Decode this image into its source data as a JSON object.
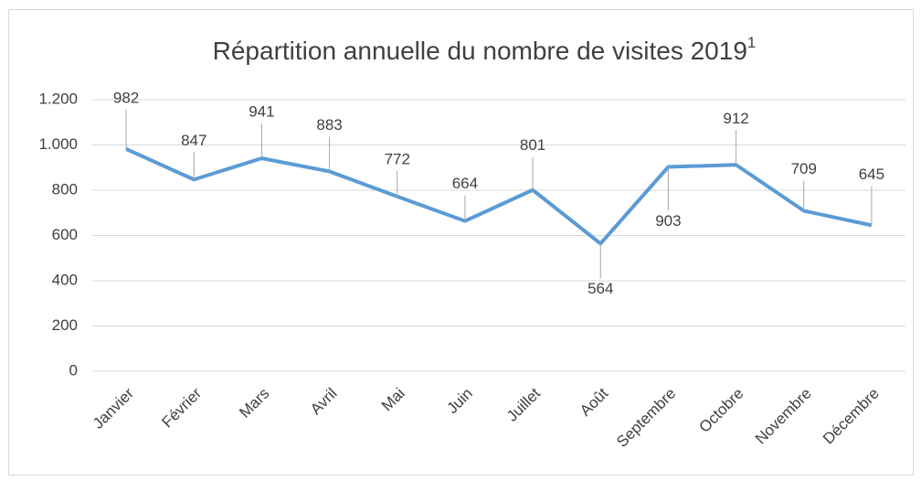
{
  "chart_data": {
    "type": "line",
    "title": "Répartition annuelle du nombre de visites 2019",
    "title_note": "1",
    "categories": [
      "Janvier",
      "Février",
      "Mars",
      "Avril",
      "Mai",
      "Juin",
      "Juillet",
      "Août",
      "Septembre",
      "Octobre",
      "Novembre",
      "Décembre"
    ],
    "values": [
      982,
      847,
      941,
      883,
      772,
      664,
      801,
      564,
      903,
      912,
      709,
      645
    ],
    "color": "#5b9bd5",
    "ylim": [
      0,
      1200
    ],
    "yticks": [
      0,
      200,
      400,
      600,
      800,
      {
        "value": 1000,
        "label": "1.000"
      },
      {
        "value": 1200,
        "label": "1.200"
      }
    ],
    "grid": true
  }
}
